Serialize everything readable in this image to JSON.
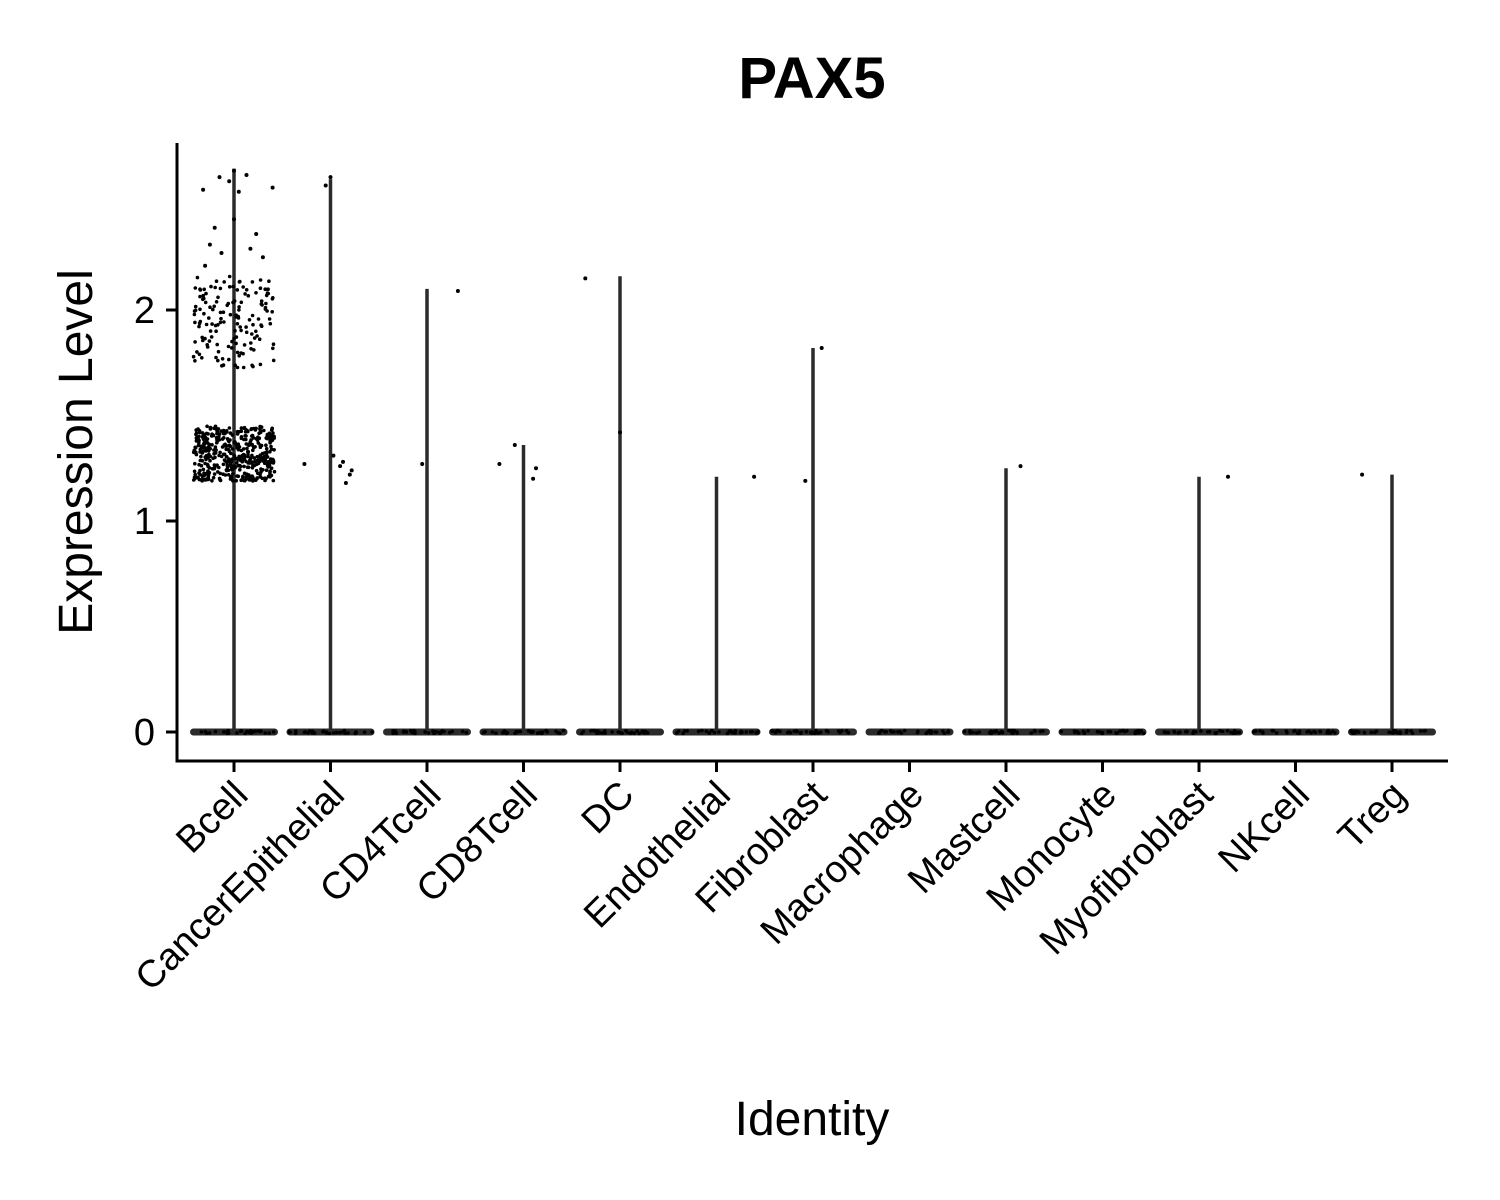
{
  "chart_data": {
    "type": "violin",
    "title": "PAX5",
    "xlabel": "Identity",
    "ylabel": "Expression Level",
    "ylim": [
      -0.07,
      2.78
    ],
    "yticks": [
      0,
      1,
      2
    ],
    "grid": false,
    "legend": "none",
    "categories": [
      "Bcell",
      "CancerEpithelial",
      "CD4Tcell",
      "CD8Tcell",
      "DC",
      "Endothelial",
      "Fibroblast",
      "Macrophage",
      "Mastcell",
      "Monocyte",
      "Myofibroblast",
      "NKcell",
      "Treg"
    ],
    "violin_max": [
      2.67,
      2.62,
      2.1,
      1.36,
      2.16,
      1.21,
      1.82,
      0.0,
      1.25,
      0.0,
      1.21,
      0.0,
      1.22
    ],
    "baseline_value": 0,
    "points": [
      {
        "category": "CancerEpithelial",
        "x_offset": -0.27,
        "y": 1.27
      },
      {
        "category": "CancerEpithelial",
        "x_offset": -0.05,
        "y": 2.59
      },
      {
        "category": "CancerEpithelial",
        "x_offset": 0.0,
        "y": 2.63
      },
      {
        "category": "CancerEpithelial",
        "x_offset": 0.03,
        "y": 1.31
      },
      {
        "category": "CancerEpithelial",
        "x_offset": 0.1,
        "y": 1.26
      },
      {
        "category": "CancerEpithelial",
        "x_offset": 0.13,
        "y": 1.28
      },
      {
        "category": "CancerEpithelial",
        "x_offset": 0.16,
        "y": 1.18
      },
      {
        "category": "CancerEpithelial",
        "x_offset": 0.2,
        "y": 1.22
      },
      {
        "category": "CancerEpithelial",
        "x_offset": 0.22,
        "y": 1.24
      },
      {
        "category": "CD4Tcell",
        "x_offset": -0.05,
        "y": 1.27
      },
      {
        "category": "CD4Tcell",
        "x_offset": 0.32,
        "y": 2.09
      },
      {
        "category": "CD8Tcell",
        "x_offset": -0.25,
        "y": 1.27
      },
      {
        "category": "CD8Tcell",
        "x_offset": -0.09,
        "y": 1.36
      },
      {
        "category": "CD8Tcell",
        "x_offset": 0.1,
        "y": 1.2
      },
      {
        "category": "CD8Tcell",
        "x_offset": 0.13,
        "y": 1.25
      },
      {
        "category": "DC",
        "x_offset": -0.36,
        "y": 2.15
      },
      {
        "category": "DC",
        "x_offset": 0.0,
        "y": 1.42
      },
      {
        "category": "Endothelial",
        "x_offset": 0.39,
        "y": 1.21
      },
      {
        "category": "Fibroblast",
        "x_offset": -0.08,
        "y": 1.19
      },
      {
        "category": "Fibroblast",
        "x_offset": 0.09,
        "y": 1.82
      },
      {
        "category": "Mastcell",
        "x_offset": 0.15,
        "y": 1.26
      },
      {
        "category": "Myofibroblast",
        "x_offset": 0.3,
        "y": 1.21
      },
      {
        "category": "Treg",
        "x_offset": -0.31,
        "y": 1.22
      }
    ],
    "dense_groups": [
      {
        "category": "Bcell",
        "count": 460,
        "x_spread": 0.42,
        "y_range": [
          1.19,
          1.45
        ]
      },
      {
        "category": "Bcell",
        "count": 150,
        "x_spread": 0.42,
        "y_range": [
          1.72,
          2.16
        ]
      }
    ],
    "outlier_points": [
      {
        "category": "Bcell",
        "x_offset": -0.32,
        "y": 2.57
      },
      {
        "category": "Bcell",
        "x_offset": -0.15,
        "y": 2.63
      },
      {
        "category": "Bcell",
        "x_offset": -0.05,
        "y": 2.61
      },
      {
        "category": "Bcell",
        "x_offset": 0.0,
        "y": 2.66
      },
      {
        "category": "Bcell",
        "x_offset": 0.05,
        "y": 2.56
      },
      {
        "category": "Bcell",
        "x_offset": 0.13,
        "y": 2.64
      },
      {
        "category": "Bcell",
        "x_offset": 0.4,
        "y": 2.58
      },
      {
        "category": "Bcell",
        "x_offset": 0.0,
        "y": 2.43
      },
      {
        "category": "Bcell",
        "x_offset": -0.2,
        "y": 2.39
      },
      {
        "category": "Bcell",
        "x_offset": -0.25,
        "y": 2.31
      },
      {
        "category": "Bcell",
        "x_offset": 0.23,
        "y": 2.36
      },
      {
        "category": "Bcell",
        "x_offset": -0.13,
        "y": 2.27
      },
      {
        "category": "Bcell",
        "x_offset": 0.17,
        "y": 2.29
      },
      {
        "category": "Bcell",
        "x_offset": -0.3,
        "y": 2.21
      },
      {
        "category": "Bcell",
        "x_offset": 0.3,
        "y": 2.25
      }
    ]
  },
  "colors": {
    "violin": "#2b2b2b",
    "points": "#000000",
    "axis": "#000000"
  }
}
